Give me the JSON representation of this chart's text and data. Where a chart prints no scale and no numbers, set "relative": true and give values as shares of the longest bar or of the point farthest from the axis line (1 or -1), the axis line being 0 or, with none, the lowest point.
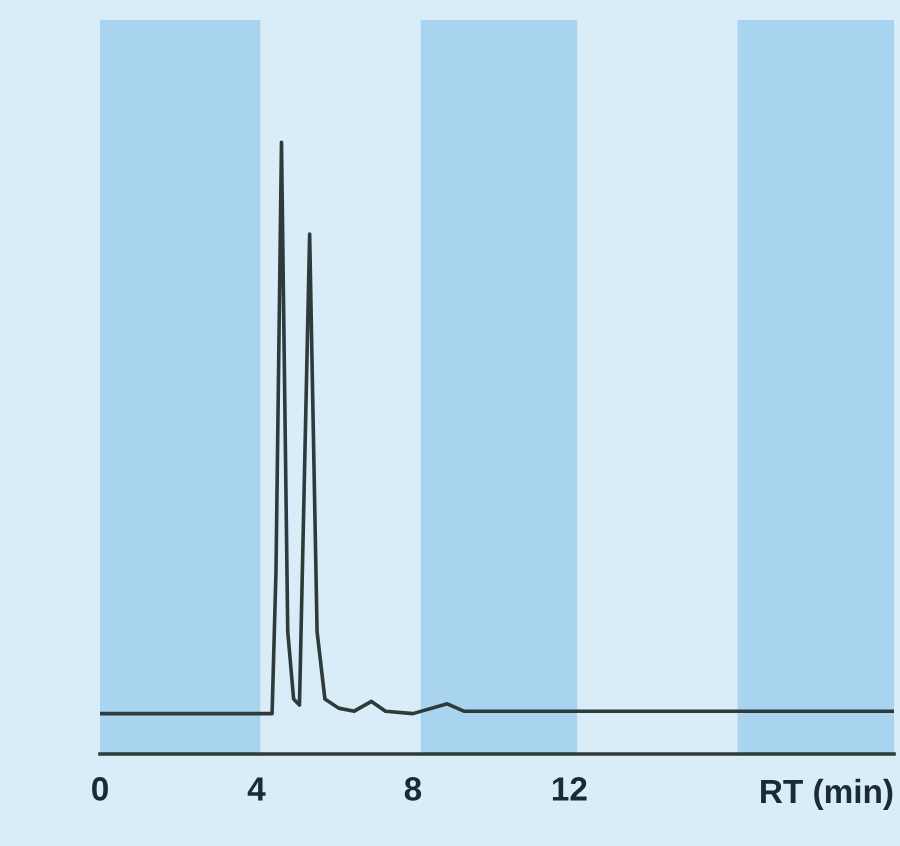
{
  "chart_data": {
    "type": "line",
    "relative": true,
    "xlabel": "RT (min)",
    "x": [
      0,
      4.4,
      4.5,
      4.64,
      4.8,
      4.95,
      5.1,
      5.36,
      5.55,
      5.75,
      6.1,
      6.5,
      6.94,
      7.3,
      8.0,
      8.88,
      9.3,
      12,
      16,
      20.3
    ],
    "series": [
      {
        "color": "#2e3b3a",
        "values": [
          0.066,
          0.066,
          0.3,
          1.0,
          0.2,
          0.09,
          0.08,
          0.85,
          0.2,
          0.09,
          0.075,
          0.07,
          0.086,
          0.07,
          0.066,
          0.082,
          0.07,
          0.07,
          0.07,
          0.07
        ]
      }
    ],
    "xlim": [
      0,
      20.3
    ],
    "xticks": [
      0,
      4,
      8,
      12
    ],
    "bands": [
      {
        "axis": "x",
        "from": 0,
        "to": 4.1,
        "color": "#a9d4f0"
      },
      {
        "axis": "x",
        "from": 8.2,
        "to": 12.2,
        "color": "#a9d4f0"
      },
      {
        "axis": "x",
        "from": 16.3,
        "to": 20.3,
        "color": "#a9d4f0"
      }
    ],
    "grid": false
  }
}
